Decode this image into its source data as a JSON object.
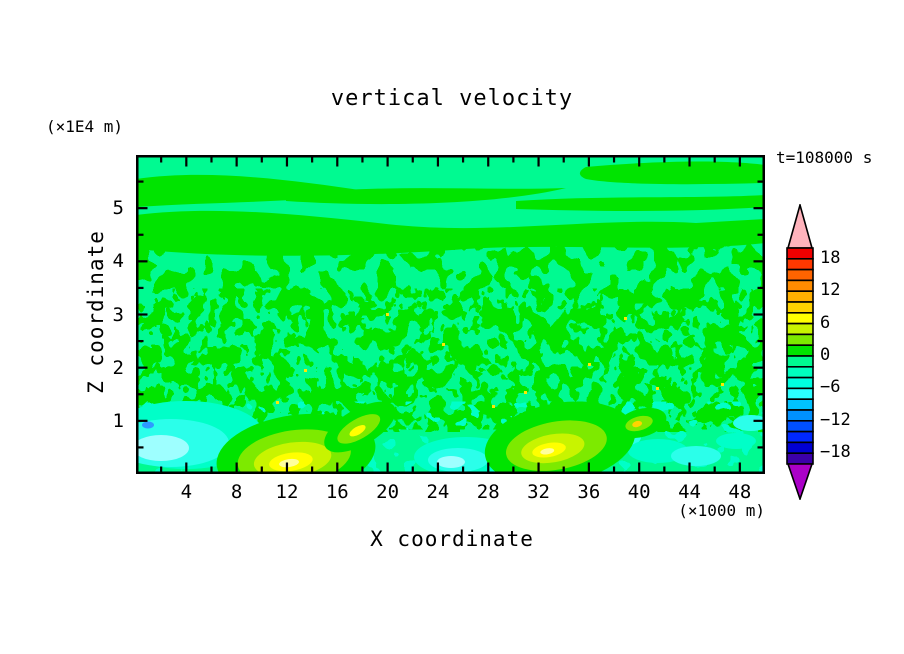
{
  "chart_data": {
    "type": "filled-contour",
    "title": "vertical velocity",
    "time_annotation": "t=108000 s",
    "xlabel": "X coordinate",
    "x_unit_label": "(×1000 m)",
    "ylabel": "Z coordinate",
    "y_unit_label": "(×1E4 m)",
    "x_range": [
      0,
      50
    ],
    "y_range": [
      0,
      6
    ],
    "x_major_ticks": [
      4,
      8,
      12,
      16,
      20,
      24,
      28,
      32,
      36,
      40,
      44,
      48
    ],
    "x_minor_ticks": [
      2,
      6,
      10,
      14,
      18,
      22,
      26,
      30,
      34,
      38,
      42,
      46
    ],
    "y_major_ticks": [
      1,
      2,
      3,
      4,
      5
    ],
    "y_minor_ticks": [
      0.5,
      1.5,
      2.5,
      3.5,
      4.5,
      5.5
    ],
    "grid": false,
    "legend_position": "right-colorbar",
    "background_field_color": "#00fa91",
    "colorbar": {
      "labeled_levels": [
        "18",
        "12",
        "6",
        "0",
        "−6",
        "−12",
        "−18"
      ],
      "levels_numeric": [
        18,
        12,
        6,
        0,
        -6,
        -12,
        -18
      ],
      "contour_interval": 2,
      "value_range": [
        -20,
        20
      ],
      "over_color": "#ffb3bc",
      "under_color": "#aa00c8",
      "segments": [
        {
          "from": 18,
          "to": 20,
          "color": "#f00000"
        },
        {
          "from": 16,
          "to": 18,
          "color": "#ff3800"
        },
        {
          "from": 14,
          "to": 16,
          "color": "#ff6400"
        },
        {
          "from": 12,
          "to": 14,
          "color": "#ff8c00"
        },
        {
          "from": 10,
          "to": 12,
          "color": "#ffb000"
        },
        {
          "from": 8,
          "to": 10,
          "color": "#ffd300"
        },
        {
          "from": 6,
          "to": 8,
          "color": "#ffff00"
        },
        {
          "from": 4,
          "to": 6,
          "color": "#c8f400"
        },
        {
          "from": 2,
          "to": 4,
          "color": "#7dea00"
        },
        {
          "from": 0,
          "to": 2,
          "color": "#00e400"
        },
        {
          "from": -2,
          "to": 0,
          "color": "#00fa91"
        },
        {
          "from": -4,
          "to": -2,
          "color": "#00ffbe"
        },
        {
          "from": -6,
          "to": -4,
          "color": "#00ffe1"
        },
        {
          "from": -8,
          "to": -6,
          "color": "#2bffff"
        },
        {
          "from": -10,
          "to": -8,
          "color": "#00c3ff"
        },
        {
          "from": -12,
          "to": -10,
          "color": "#0091ff"
        },
        {
          "from": -14,
          "to": -12,
          "color": "#0050ff"
        },
        {
          "from": -16,
          "to": -14,
          "color": "#0028ff"
        },
        {
          "from": -18,
          "to": -16,
          "color": "#0000d2"
        },
        {
          "from": -20,
          "to": -18,
          "color": "#3c00aa"
        }
      ]
    },
    "field_features": [
      {
        "region": "z ≈ 4.5–6",
        "pattern": "near-uniform background in the −2–0 band with long thin 0–2 streaks"
      },
      {
        "region": "z ≈ 3.3–4.5",
        "pattern": "horizontal wavy bands alternating between −2–0 and 0–2"
      },
      {
        "region": "z ≈ 1–3.3",
        "pattern": "fine mottled cells alternating ±2 with sparse tiny 2–4 specks"
      },
      {
        "kind": "updraft plume",
        "x": 12.5,
        "z": 0.4,
        "peak_band": "6–8"
      },
      {
        "kind": "updraft plume",
        "x": 17.5,
        "z": 0.9,
        "peak_band": "4–6"
      },
      {
        "kind": "updraft plume",
        "x": 33.5,
        "z": 0.6,
        "peak_band": "6–8"
      },
      {
        "kind": "updraft spot",
        "x": 41.5,
        "z": 1.0,
        "peak_band": "6–8"
      },
      {
        "kind": "downdraft patch",
        "x": 4,
        "z": 0.5,
        "min_band": "−8 to −6, tiny −10 speck"
      },
      {
        "kind": "downdraft patch",
        "x": 26,
        "z": 0.3,
        "min_band": "−8 to −6"
      },
      {
        "kind": "downdraft patch",
        "x": 38.5,
        "z": 0.7,
        "min_band": "−10 to −8 speck in cyan patch"
      },
      {
        "kind": "downdraft patch",
        "x": 44,
        "z": 0.5,
        "min_band": "−6 to −4"
      }
    ]
  }
}
